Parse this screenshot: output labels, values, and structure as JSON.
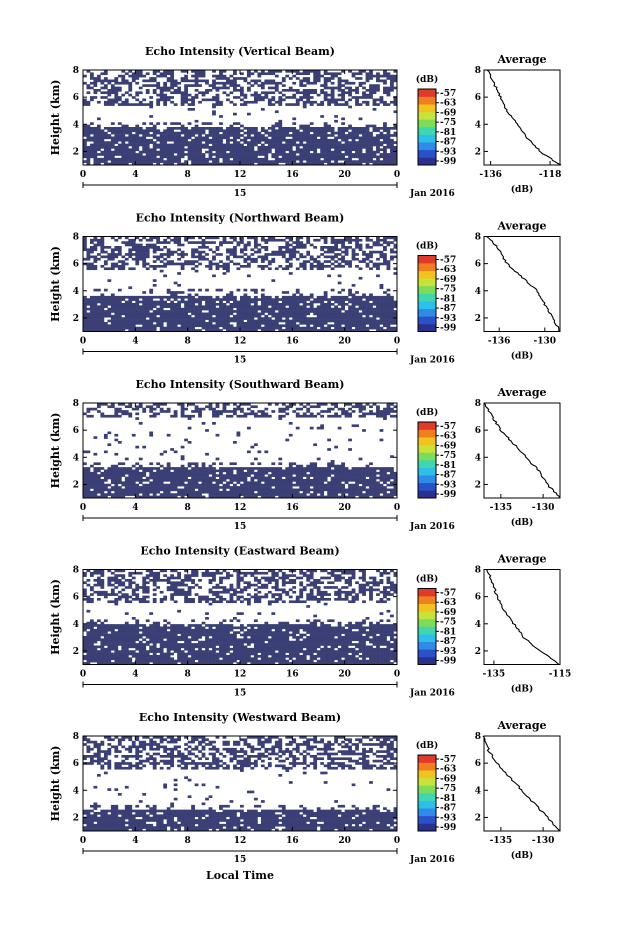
{
  "colors": {
    "echo": "#3a3f75",
    "colorbar": [
      "#2b2f8f",
      "#2a52c8",
      "#2f8ae8",
      "#2cc0e8",
      "#3fd6b0",
      "#7ddc5a",
      "#c8e23a",
      "#f2c21f",
      "#f07f1f",
      "#e03a2a"
    ]
  },
  "figure": {
    "xlabel": "Local Time",
    "date_label": "Jan 2016",
    "day_label": "15",
    "colorbar_unit": "(dB)",
    "colorbar_ticks": [
      "-57",
      "-63",
      "-69",
      "-75",
      "-81",
      "-87",
      "-93",
      "-99"
    ],
    "avg_title": "Average",
    "avg_xlabel": "(dB)"
  },
  "chart_data": [
    {
      "type": "heatmap",
      "title": "Echo Intensity (Vertical Beam)",
      "ylabel": "Height (km)",
      "x_ticks": [
        "0",
        "4",
        "8",
        "12",
        "16",
        "20",
        "0"
      ],
      "y_ticks": [
        "2",
        "4",
        "6",
        "8"
      ],
      "xlim": [
        0,
        24
      ],
      "ylim": [
        1,
        8
      ],
      "echo_bands_km": [
        [
          1.0,
          3.8
        ],
        [
          5.3,
          8.0
        ]
      ],
      "profile": {
        "title": "Average",
        "x_ticks": [
          "-136",
          "-118"
        ],
        "xlim": [
          -138,
          -115
        ],
        "heights_km": [
          1,
          2,
          3,
          4,
          5,
          6,
          7,
          8
        ],
        "values_db": [
          -115,
          -121,
          -125,
          -128,
          -131,
          -133,
          -135,
          -137
        ]
      }
    },
    {
      "type": "heatmap",
      "title": "Echo Intensity (Northward Beam)",
      "ylabel": "Height (km)",
      "x_ticks": [
        "0",
        "4",
        "8",
        "12",
        "16",
        "20",
        "0"
      ],
      "y_ticks": [
        "2",
        "4",
        "6",
        "8"
      ],
      "xlim": [
        0,
        24
      ],
      "ylim": [
        1,
        8
      ],
      "echo_bands_km": [
        [
          1.0,
          3.7
        ],
        [
          5.6,
          8.0
        ]
      ],
      "profile": {
        "title": "Average",
        "x_ticks": [
          "-136",
          "-130"
        ],
        "xlim": [
          -138,
          -128
        ],
        "heights_km": [
          1,
          2,
          3,
          4,
          5,
          6,
          7,
          8
        ],
        "values_db": [
          -128,
          -129,
          -130,
          -131,
          -133,
          -135,
          -136,
          -137.5
        ]
      }
    },
    {
      "type": "heatmap",
      "title": "Echo Intensity (Southward Beam)",
      "ylabel": "Height (km)",
      "x_ticks": [
        "0",
        "4",
        "8",
        "12",
        "16",
        "20",
        "0"
      ],
      "y_ticks": [
        "2",
        "4",
        "6",
        "8"
      ],
      "xlim": [
        0,
        24
      ],
      "ylim": [
        1,
        8
      ],
      "echo_bands_km": [
        [
          1.0,
          3.2
        ],
        [
          7.0,
          8.0
        ]
      ],
      "profile": {
        "title": "Average",
        "x_ticks": [
          "-135",
          "-130"
        ],
        "xlim": [
          -137,
          -128
        ],
        "heights_km": [
          1,
          2,
          3,
          4,
          5,
          6,
          7,
          8
        ],
        "values_db": [
          -128,
          -129.5,
          -130.5,
          -132,
          -133.5,
          -135,
          -136,
          -137
        ]
      }
    },
    {
      "type": "heatmap",
      "title": "Echo Intensity (Eastward Beam)",
      "ylabel": "Height (km)",
      "x_ticks": [
        "0",
        "4",
        "8",
        "12",
        "16",
        "20",
        "0"
      ],
      "y_ticks": [
        "2",
        "4",
        "6",
        "8"
      ],
      "xlim": [
        0,
        24
      ],
      "ylim": [
        1,
        8
      ],
      "echo_bands_km": [
        [
          1.0,
          4.0
        ],
        [
          5.5,
          8.0
        ]
      ],
      "profile": {
        "title": "Average",
        "x_ticks": [
          "-135",
          "-115"
        ],
        "xlim": [
          -138,
          -115
        ],
        "heights_km": [
          1,
          2,
          3,
          4,
          5,
          6,
          7,
          8
        ],
        "values_db": [
          -115,
          -121,
          -126,
          -129,
          -132,
          -134,
          -135.5,
          -137
        ]
      }
    },
    {
      "type": "heatmap",
      "title": "Echo Intensity (Westward Beam)",
      "ylabel": "Height (km)",
      "x_ticks": [
        "0",
        "4",
        "8",
        "12",
        "16",
        "20",
        "0"
      ],
      "y_ticks": [
        "2",
        "4",
        "6",
        "8"
      ],
      "xlim": [
        0,
        24
      ],
      "ylim": [
        1,
        8
      ],
      "echo_bands_km": [
        [
          1.0,
          2.6
        ],
        [
          5.5,
          8.0
        ]
      ],
      "profile": {
        "title": "Average",
        "x_ticks": [
          "-135",
          "-130"
        ],
        "xlim": [
          -137,
          -128
        ],
        "heights_km": [
          1,
          2,
          3,
          4,
          5,
          6,
          7,
          8
        ],
        "values_db": [
          -128,
          -129.5,
          -131,
          -132.5,
          -134,
          -135.5,
          -136.5,
          -137
        ]
      }
    }
  ]
}
